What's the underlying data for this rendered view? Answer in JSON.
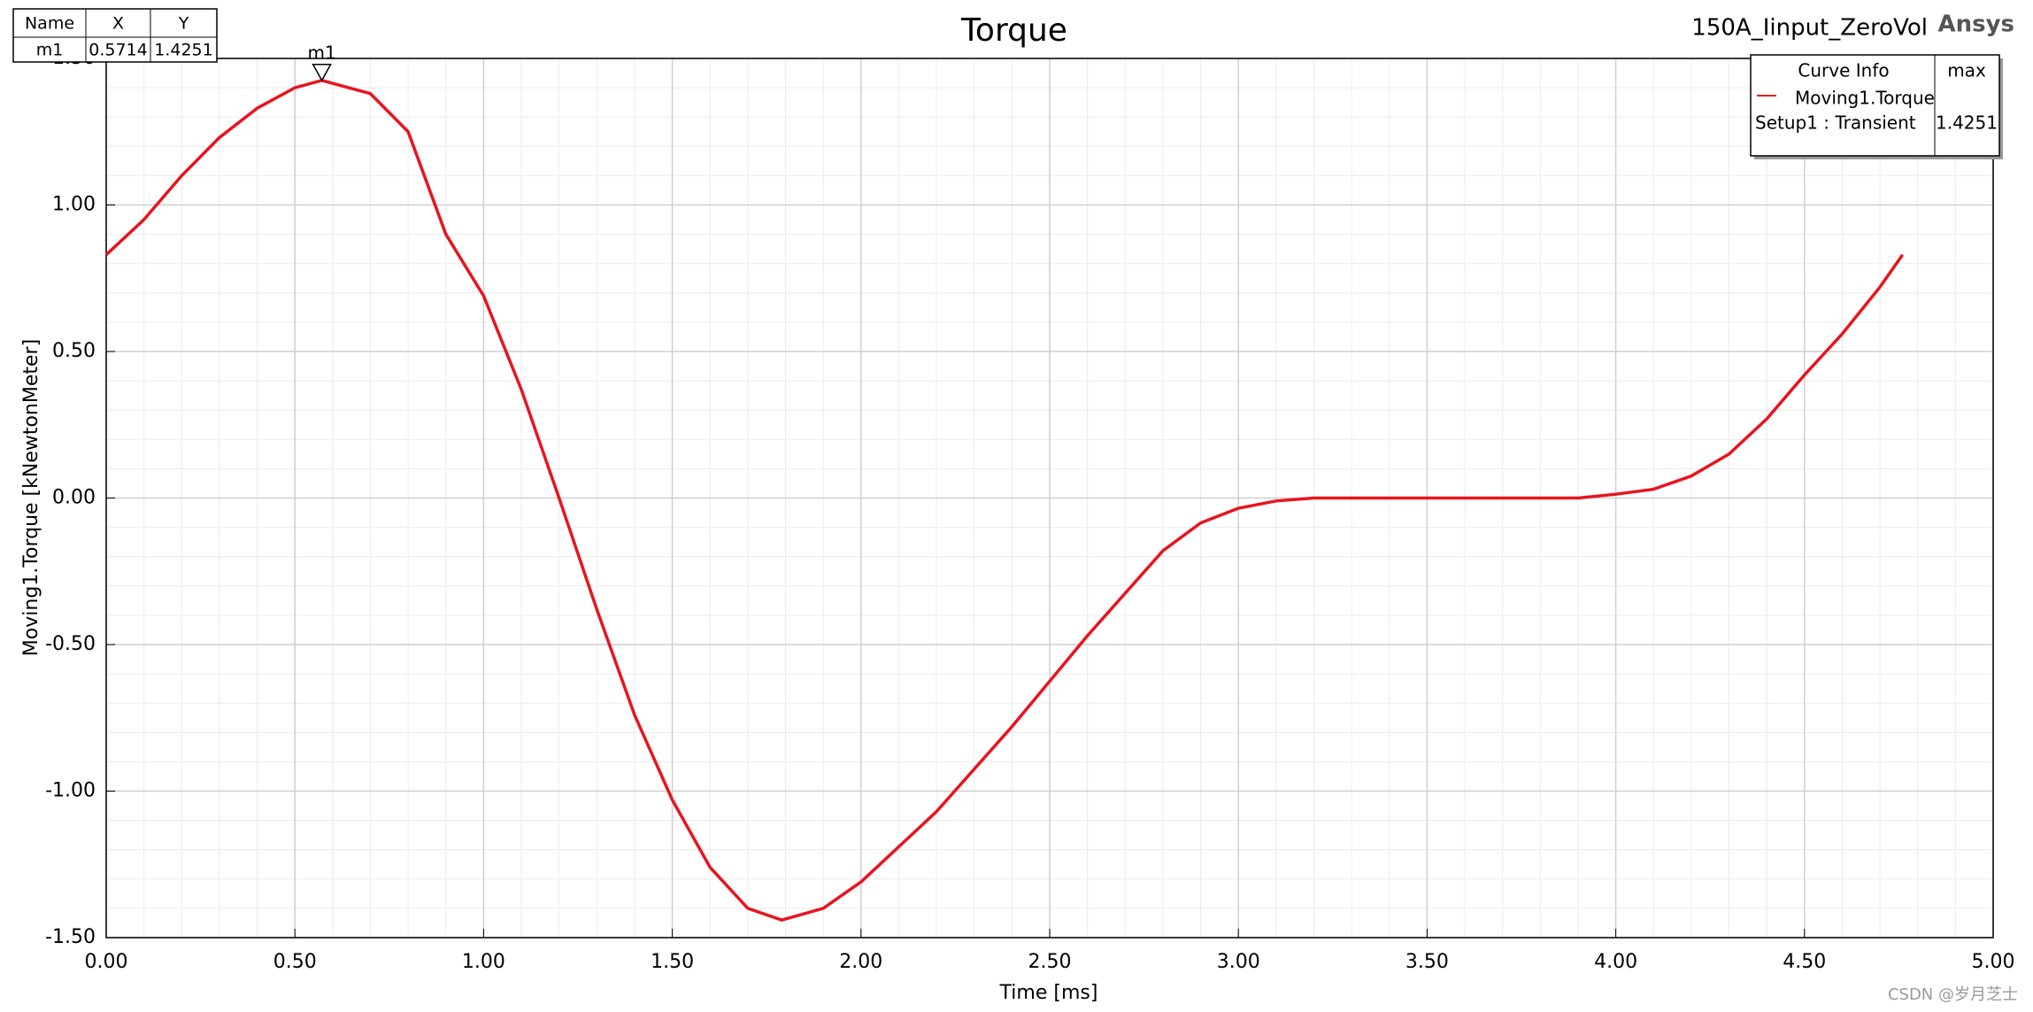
{
  "chart_data": {
    "type": "line",
    "title": "Torque",
    "subtitle": "150A_Iinput_ZeroVol",
    "brand": "Ansys",
    "watermark": "CSDN @岁月芝士",
    "xlabel": "Time [ms]",
    "ylabel": "Moving1.Torque [kNewtonMeter]",
    "x": [
      0,
      0.1,
      0.2,
      0.3,
      0.4,
      0.5,
      0.5714,
      0.7,
      0.8,
      0.9,
      1.0,
      1.1,
      1.2,
      1.3,
      1.4,
      1.5,
      1.6,
      1.7,
      1.79,
      1.9,
      2.0,
      2.2,
      2.4,
      2.6,
      2.8,
      2.9,
      3.0,
      3.1,
      3.2,
      3.5,
      3.9,
      4.0,
      4.1,
      4.2,
      4.3,
      4.4,
      4.5,
      4.6,
      4.7,
      4.76
    ],
    "series": [
      {
        "name": "Moving1.Torque",
        "color": "#e8141e",
        "values": [
          0.83,
          0.95,
          1.1,
          1.23,
          1.33,
          1.4,
          1.4251,
          1.38,
          1.25,
          0.9,
          0.69,
          0.37,
          0.0,
          -0.38,
          -0.74,
          -1.03,
          -1.26,
          -1.4,
          -1.44,
          -1.4,
          -1.31,
          -1.07,
          -0.78,
          -0.47,
          -0.18,
          -0.085,
          -0.035,
          -0.01,
          0,
          0,
          0,
          0.013,
          0.03,
          0.075,
          0.15,
          0.27,
          0.42,
          0.56,
          0.72,
          0.83
        ]
      }
    ],
    "xlim": [
      0,
      5
    ],
    "ylim": [
      -1.5,
      1.5
    ],
    "xticks": [
      {
        "value": 0,
        "label": "0.00"
      },
      {
        "value": 0.5,
        "label": "0.50"
      },
      {
        "value": 1,
        "label": "1.00"
      },
      {
        "value": 1.5,
        "label": "1.50"
      },
      {
        "value": 2,
        "label": "2.00"
      },
      {
        "value": 2.5,
        "label": "2.50"
      },
      {
        "value": 3,
        "label": "3.00"
      },
      {
        "value": 3.5,
        "label": "3.50"
      },
      {
        "value": 4,
        "label": "4.00"
      },
      {
        "value": 4.5,
        "label": "4.50"
      },
      {
        "value": 5,
        "label": "5.00"
      }
    ],
    "yticks": [
      {
        "value": -1.5,
        "label": "-1.50"
      },
      {
        "value": -1,
        "label": "-1.00"
      },
      {
        "value": -0.5,
        "label": "-0.50"
      },
      {
        "value": 0,
        "label": "0.00"
      },
      {
        "value": 0.5,
        "label": "0.50"
      },
      {
        "value": 1,
        "label": "1.00"
      },
      {
        "value": 1.5,
        "label": "1.50"
      }
    ],
    "grid": true,
    "marker_table": {
      "header": [
        "Name",
        "X",
        "Y"
      ]
    },
    "markers": [
      {
        "name": "m1",
        "x": 0.5714,
        "y": 1.4251
      }
    ],
    "legend": {
      "header": [
        "Curve Info",
        "max"
      ],
      "setup": "Setup1 : Transient",
      "max": 1.4251
    }
  }
}
